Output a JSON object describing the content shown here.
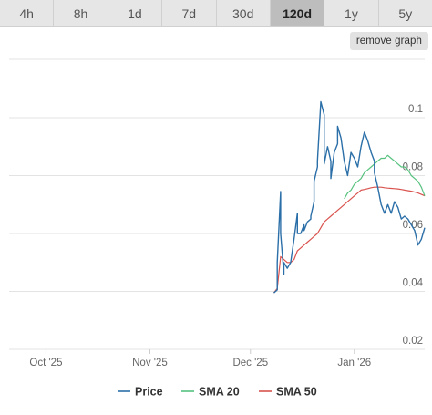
{
  "tabs": [
    {
      "label": "4h",
      "active": false
    },
    {
      "label": "8h",
      "active": false
    },
    {
      "label": "1d",
      "active": false
    },
    {
      "label": "7d",
      "active": false
    },
    {
      "label": "30d",
      "active": false
    },
    {
      "label": "120d",
      "active": true
    },
    {
      "label": "1y",
      "active": false
    },
    {
      "label": "5y",
      "active": false
    }
  ],
  "remove_label": "remove graph",
  "chart_data": {
    "type": "line",
    "title": "",
    "xlabel": "",
    "ylabel": "",
    "x_range": [
      "2025-09-20",
      "2026-01-22"
    ],
    "ylim": [
      0.02,
      0.1
    ],
    "y_ticks": [
      {
        "value": 0.02,
        "label": "0.02"
      },
      {
        "value": 0.04,
        "label": "0.04"
      },
      {
        "value": 0.06,
        "label": "0.06"
      },
      {
        "value": 0.08,
        "label": "0.08"
      },
      {
        "value": 0.1,
        "label": "0.1"
      }
    ],
    "x_ticks": [
      {
        "date": "2025-10-01",
        "label": "Oct '25"
      },
      {
        "date": "2025-11-01",
        "label": "Nov '25"
      },
      {
        "date": "2025-12-01",
        "label": "Dec '25"
      },
      {
        "date": "2026-01-01",
        "label": "Jan '26"
      }
    ],
    "grid": true,
    "legend_position": "bottom",
    "series": [
      {
        "name": "Price",
        "color": "#2b6fa8",
        "points": [
          [
            "2025-12-08",
            0.0395
          ],
          [
            "2025-12-09",
            0.0405
          ],
          [
            "2025-12-09",
            0.05
          ],
          [
            "2025-12-10",
            0.0745
          ],
          [
            "2025-12-10",
            0.06
          ],
          [
            "2025-12-11",
            0.046
          ],
          [
            "2025-12-11",
            0.05
          ],
          [
            "2025-12-12",
            0.048
          ],
          [
            "2025-12-13",
            0.05
          ],
          [
            "2025-12-13",
            0.05
          ],
          [
            "2025-12-14",
            0.058
          ],
          [
            "2025-12-15",
            0.067
          ],
          [
            "2025-12-15",
            0.06
          ],
          [
            "2025-12-16",
            0.06
          ],
          [
            "2025-12-17",
            0.063
          ],
          [
            "2025-12-17",
            0.061
          ],
          [
            "2025-12-18",
            0.064
          ],
          [
            "2025-12-19",
            0.065
          ],
          [
            "2025-12-19",
            0.066
          ],
          [
            "2025-12-20",
            0.071
          ],
          [
            "2025-12-20",
            0.078
          ],
          [
            "2025-12-21",
            0.083
          ],
          [
            "2025-12-21",
            0.085
          ],
          [
            "2025-12-22",
            0.1055
          ],
          [
            "2025-12-23",
            0.101
          ],
          [
            "2025-12-23",
            0.084
          ],
          [
            "2025-12-24",
            0.09
          ],
          [
            "2025-12-25",
            0.085
          ],
          [
            "2025-12-25",
            0.079
          ],
          [
            "2025-12-26",
            0.088
          ],
          [
            "2025-12-27",
            0.091
          ],
          [
            "2025-12-27",
            0.097
          ],
          [
            "2025-12-28",
            0.093
          ],
          [
            "2025-12-29",
            0.085
          ],
          [
            "2025-12-30",
            0.08
          ],
          [
            "2025-12-31",
            0.088
          ],
          [
            "2026-01-01",
            0.086
          ],
          [
            "2026-01-02",
            0.083
          ],
          [
            "2026-01-03",
            0.09
          ],
          [
            "2026-01-04",
            0.095
          ],
          [
            "2026-01-05",
            0.092
          ],
          [
            "2026-01-06",
            0.088
          ],
          [
            "2026-01-07",
            0.085
          ],
          [
            "2026-01-07",
            0.081
          ],
          [
            "2026-01-08",
            0.076
          ],
          [
            "2026-01-09",
            0.07
          ],
          [
            "2026-01-10",
            0.067
          ],
          [
            "2026-01-11",
            0.07
          ],
          [
            "2026-01-12",
            0.067
          ],
          [
            "2026-01-13",
            0.071
          ],
          [
            "2026-01-14",
            0.069
          ],
          [
            "2026-01-15",
            0.065
          ],
          [
            "2026-01-16",
            0.066
          ],
          [
            "2026-01-17",
            0.065
          ],
          [
            "2026-01-18",
            0.063
          ],
          [
            "2026-01-19",
            0.061
          ],
          [
            "2026-01-20",
            0.056
          ],
          [
            "2026-01-21",
            0.058
          ],
          [
            "2026-01-22",
            0.062
          ]
        ]
      },
      {
        "name": "SMA 20",
        "color": "#57c27f",
        "points": [
          [
            "2025-12-29",
            0.072
          ],
          [
            "2025-12-30",
            0.074
          ],
          [
            "2025-12-31",
            0.075
          ],
          [
            "2026-01-01",
            0.077
          ],
          [
            "2026-01-02",
            0.078
          ],
          [
            "2026-01-03",
            0.079
          ],
          [
            "2026-01-04",
            0.081
          ],
          [
            "2026-01-05",
            0.082
          ],
          [
            "2026-01-06",
            0.083
          ],
          [
            "2026-01-07",
            0.084
          ],
          [
            "2026-01-08",
            0.085
          ],
          [
            "2026-01-09",
            0.086
          ],
          [
            "2026-01-10",
            0.086
          ],
          [
            "2026-01-11",
            0.087
          ],
          [
            "2026-01-12",
            0.086
          ],
          [
            "2026-01-13",
            0.085
          ],
          [
            "2026-01-14",
            0.084
          ],
          [
            "2026-01-15",
            0.083
          ],
          [
            "2026-01-16",
            0.083
          ],
          [
            "2026-01-17",
            0.082
          ],
          [
            "2026-01-18",
            0.08
          ],
          [
            "2026-01-19",
            0.079
          ],
          [
            "2026-01-20",
            0.078
          ],
          [
            "2026-01-21",
            0.076
          ],
          [
            "2026-01-22",
            0.073
          ]
        ]
      },
      {
        "name": "SMA 50",
        "color": "#d9534f",
        "points": [
          [
            "2025-12-08",
            0.0395
          ],
          [
            "2025-12-09",
            0.041
          ],
          [
            "2025-12-10",
            0.052
          ],
          [
            "2025-12-11",
            0.051
          ],
          [
            "2025-12-12",
            0.05
          ],
          [
            "2025-12-13",
            0.05
          ],
          [
            "2025-12-14",
            0.051
          ],
          [
            "2025-12-15",
            0.054
          ],
          [
            "2025-12-16",
            0.055
          ],
          [
            "2025-12-17",
            0.056
          ],
          [
            "2025-12-18",
            0.057
          ],
          [
            "2025-12-19",
            0.058
          ],
          [
            "2025-12-20",
            0.059
          ],
          [
            "2025-12-21",
            0.06
          ],
          [
            "2025-12-22",
            0.062
          ],
          [
            "2025-12-23",
            0.064
          ],
          [
            "2025-12-24",
            0.065
          ],
          [
            "2025-12-25",
            0.066
          ],
          [
            "2025-12-26",
            0.067
          ],
          [
            "2025-12-27",
            0.068
          ],
          [
            "2025-12-28",
            0.069
          ],
          [
            "2025-12-29",
            0.07
          ],
          [
            "2025-12-30",
            0.071
          ],
          [
            "2025-12-31",
            0.072
          ],
          [
            "2026-01-01",
            0.073
          ],
          [
            "2026-01-02",
            0.074
          ],
          [
            "2026-01-03",
            0.075
          ],
          [
            "2026-01-04",
            0.0752
          ],
          [
            "2026-01-05",
            0.0755
          ],
          [
            "2026-01-06",
            0.0758
          ],
          [
            "2026-01-07",
            0.076
          ],
          [
            "2026-01-08",
            0.076
          ],
          [
            "2026-01-09",
            0.076
          ],
          [
            "2026-01-10",
            0.0758
          ],
          [
            "2026-01-11",
            0.0757
          ],
          [
            "2026-01-12",
            0.0756
          ],
          [
            "2026-01-13",
            0.0755
          ],
          [
            "2026-01-14",
            0.0754
          ],
          [
            "2026-01-15",
            0.0752
          ],
          [
            "2026-01-16",
            0.075
          ],
          [
            "2026-01-17",
            0.0748
          ],
          [
            "2026-01-18",
            0.0746
          ],
          [
            "2026-01-19",
            0.0743
          ],
          [
            "2026-01-20",
            0.074
          ],
          [
            "2026-01-21",
            0.0735
          ],
          [
            "2026-01-22",
            0.073
          ]
        ]
      }
    ]
  }
}
